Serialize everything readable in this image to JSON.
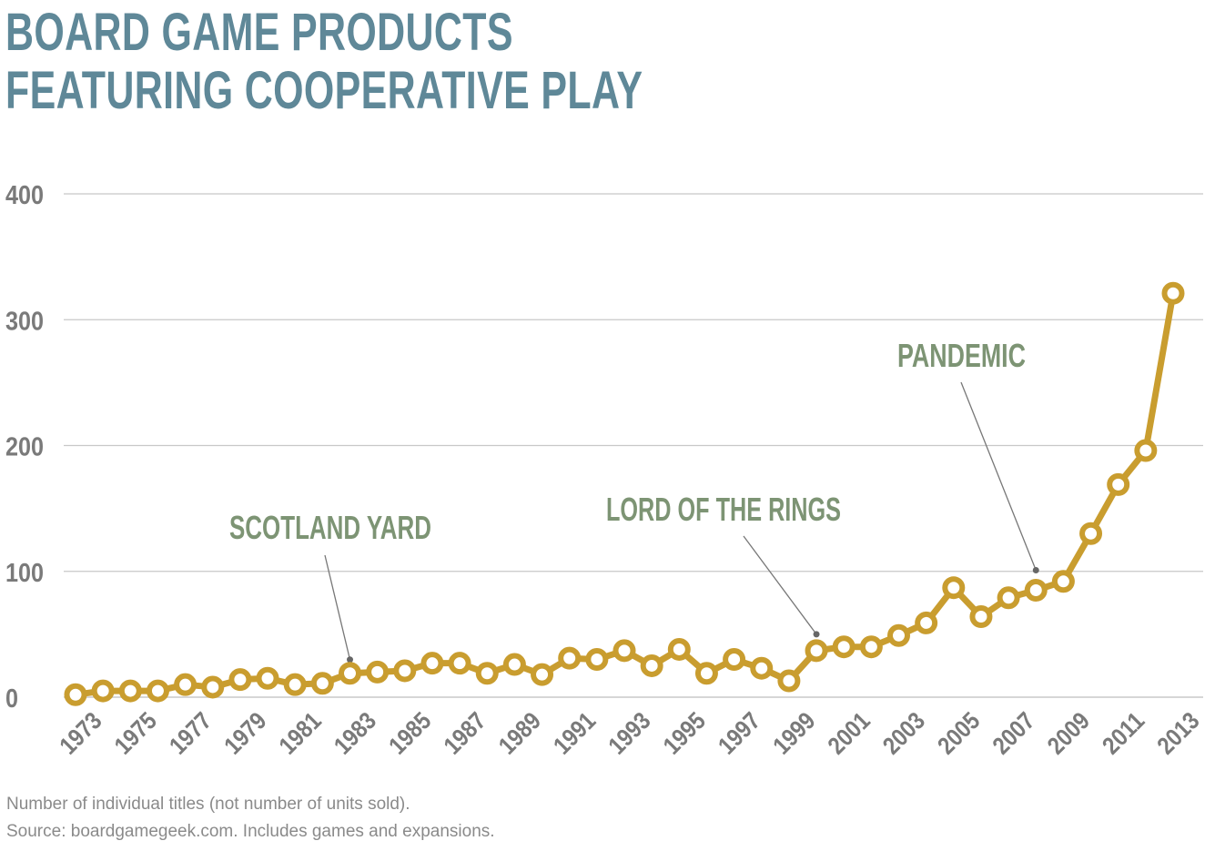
{
  "title_line1": "BOARD GAME PRODUCTS",
  "title_line2": "FEATURING COOPERATIVE PLAY",
  "footnote_line1": "Number of individual titles (not number of units sold).",
  "footnote_line2": "Source: boardgamegeek.com. Includes games and expansions.",
  "colors": {
    "title": "#5f8898",
    "line": "#c99d2f",
    "annotation": "#7d9474",
    "axis_text": "#7a7a7a",
    "grid": "#c8c8c8"
  },
  "chart_data": {
    "type": "line",
    "x": [
      1973,
      1974,
      1975,
      1976,
      1977,
      1978,
      1979,
      1980,
      1981,
      1982,
      1983,
      1984,
      1985,
      1986,
      1987,
      1988,
      1989,
      1990,
      1991,
      1992,
      1993,
      1994,
      1995,
      1996,
      1997,
      1998,
      1999,
      2000,
      2001,
      2002,
      2003,
      2004,
      2005,
      2006,
      2007,
      2008,
      2009,
      2010,
      2011,
      2012,
      2013
    ],
    "values": [
      2,
      5,
      5,
      5,
      10,
      8,
      14,
      15,
      10,
      11,
      19,
      20,
      21,
      27,
      27,
      19,
      26,
      18,
      31,
      30,
      37,
      25,
      38,
      19,
      30,
      23,
      13,
      37,
      40,
      40,
      49,
      59,
      87,
      64,
      79,
      85,
      92,
      130,
      169,
      196,
      321
    ],
    "x_tick_labels": [
      "1973",
      "1975",
      "1977",
      "1979",
      "1981",
      "1983",
      "1985",
      "1987",
      "1989",
      "1991",
      "1993",
      "1995",
      "1997",
      "1999",
      "2001",
      "2003",
      "2005",
      "2007",
      "2009",
      "2011",
      "2013"
    ],
    "y_ticks": [
      0,
      100,
      200,
      300,
      400
    ],
    "ylim": [
      0,
      400
    ],
    "grid": "horizontal",
    "legend": "none",
    "annotations": [
      {
        "label": "SCOTLAND YARD",
        "x": 1983
      },
      {
        "label": "LORD OF THE RINGS",
        "x": 2000
      },
      {
        "label": "PANDEMIC",
        "x": 2008
      }
    ]
  }
}
